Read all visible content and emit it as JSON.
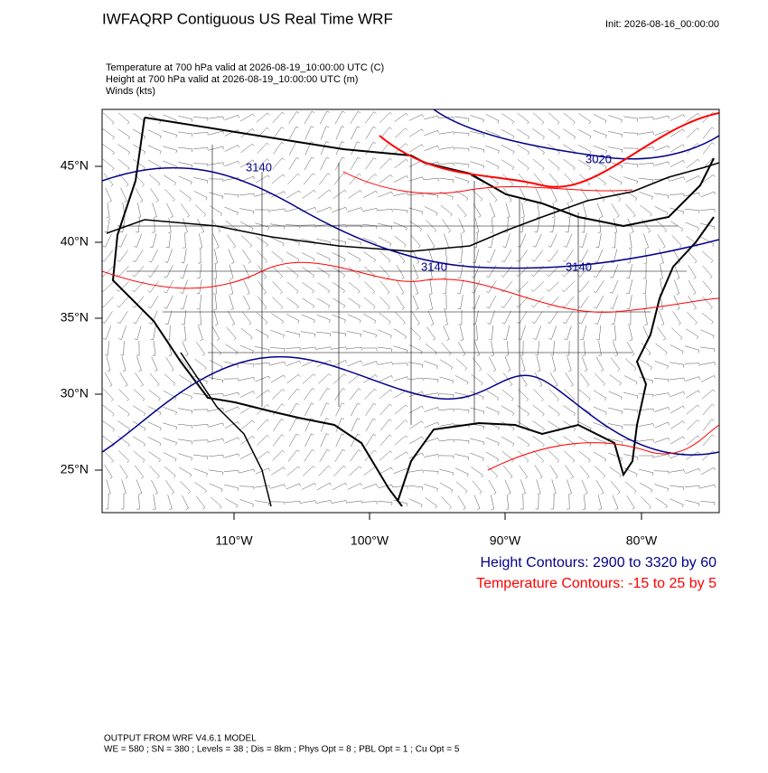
{
  "header": {
    "title": "IWFAQRP Contiguous US Real Time WRF",
    "init": "Init: 2026-08-16_00:00:00"
  },
  "fields": [
    "Temperature at 700 hPa valid at 2026-08-19_10:00:00 UTC   (C)",
    "Height at 700 hPa valid at 2026-08-19_10:00:00 UTC   (m)",
    "Winds   (kts)"
  ],
  "lat_labels": [
    "45°N",
    "40°N",
    "35°N",
    "30°N",
    "25°N"
  ],
  "lon_labels": [
    "110°W",
    "100°W",
    "90°W",
    "80°W"
  ],
  "contour_labels": [
    "3140",
    "3020",
    "3140",
    "3140"
  ],
  "legend": {
    "height": "Height Contours: 2900 to 3320 by 60",
    "temperature": "Temperature Contours: -15 to 25 by 5"
  },
  "footer": [
    "OUTPUT FROM WRF V4.6.1 MODEL",
    "WE = 580 ; SN = 380 ; Levels = 38 ; Dis = 8km ; Phys Opt = 8 ; PBL Opt = 1 ; Cu Opt = 5"
  ]
}
